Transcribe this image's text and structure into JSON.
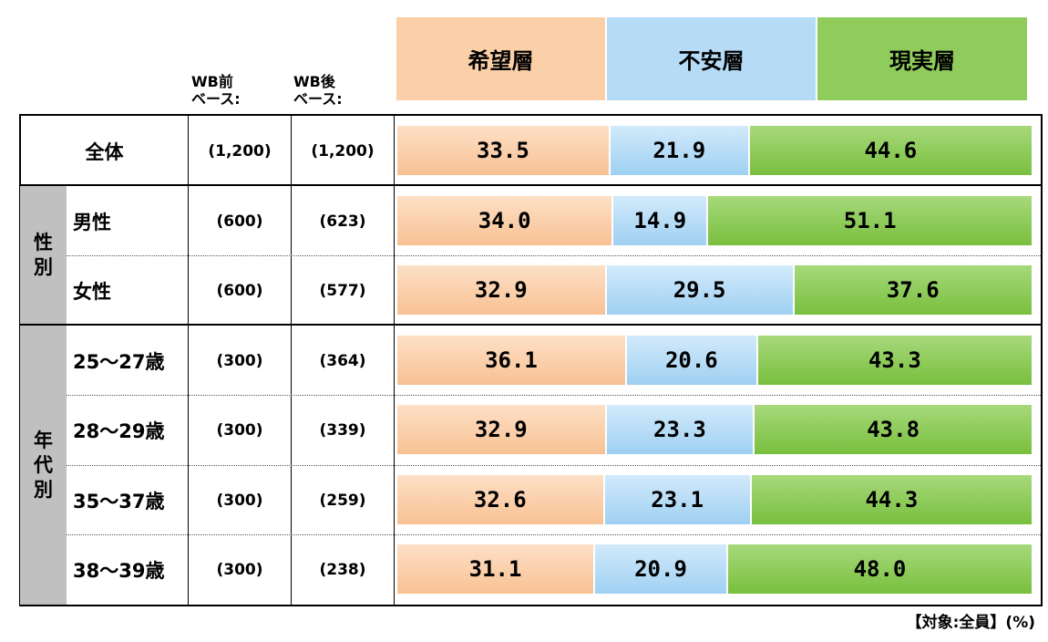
{
  "header": {
    "base_before": "WB前\nベース:",
    "base_after": "WB後\nベース:"
  },
  "legend": [
    {
      "label": "希望層",
      "color": "#fbd0a8"
    },
    {
      "label": "不安層",
      "color": "#b6dbf6"
    },
    {
      "label": "現実層",
      "color": "#8fcc5b"
    }
  ],
  "groups": [
    {
      "label": "性\n別",
      "rows": [
        1,
        2
      ]
    },
    {
      "label": "年\n代\n別",
      "rows": [
        3,
        4,
        5,
        6
      ]
    }
  ],
  "rows": [
    {
      "label": "全体",
      "n_before": "(1,200)",
      "n_after": "(1,200)"
    },
    {
      "label": "男性",
      "n_before": "(600)",
      "n_after": "(623)"
    },
    {
      "label": "女性",
      "n_before": "(600)",
      "n_after": "(577)"
    },
    {
      "label": "25～27歳",
      "n_before": "(300)",
      "n_after": "(364)"
    },
    {
      "label": "28～29歳",
      "n_before": "(300)",
      "n_after": "(339)"
    },
    {
      "label": "35～37歳",
      "n_before": "(300)",
      "n_after": "(259)"
    },
    {
      "label": "38～39歳",
      "n_before": "(300)",
      "n_after": "(238)"
    }
  ],
  "chart_data": {
    "type": "bar",
    "orientation": "horizontal",
    "stacked": true,
    "percent_stacked": true,
    "categories": [
      "全体",
      "男性",
      "女性",
      "25～27歳",
      "28～29歳",
      "35～37歳",
      "38～39歳"
    ],
    "series": [
      {
        "name": "希望層",
        "values": [
          33.5,
          34.0,
          32.9,
          36.1,
          32.9,
          32.6,
          31.1
        ],
        "labels": [
          "33.5",
          "34.0",
          "32.9",
          "36.1",
          "32.9",
          "32.6",
          "31.1"
        ]
      },
      {
        "name": "不安層",
        "values": [
          21.9,
          14.9,
          29.5,
          20.6,
          23.3,
          23.1,
          20.9
        ],
        "labels": [
          "21.9",
          "14.9",
          "29.5",
          "20.6",
          "23.3",
          "23.1",
          "20.9"
        ]
      },
      {
        "name": "現実層",
        "values": [
          44.6,
          51.1,
          37.6,
          43.3,
          43.8,
          44.3,
          48.0
        ],
        "labels": [
          "44.6",
          "51.1",
          "37.6",
          "43.3",
          "43.8",
          "44.3",
          "48.0"
        ]
      }
    ],
    "xlim": [
      0,
      100
    ],
    "grid": false,
    "legend_position": "top"
  },
  "footnote": "【対象:全員】(%)"
}
